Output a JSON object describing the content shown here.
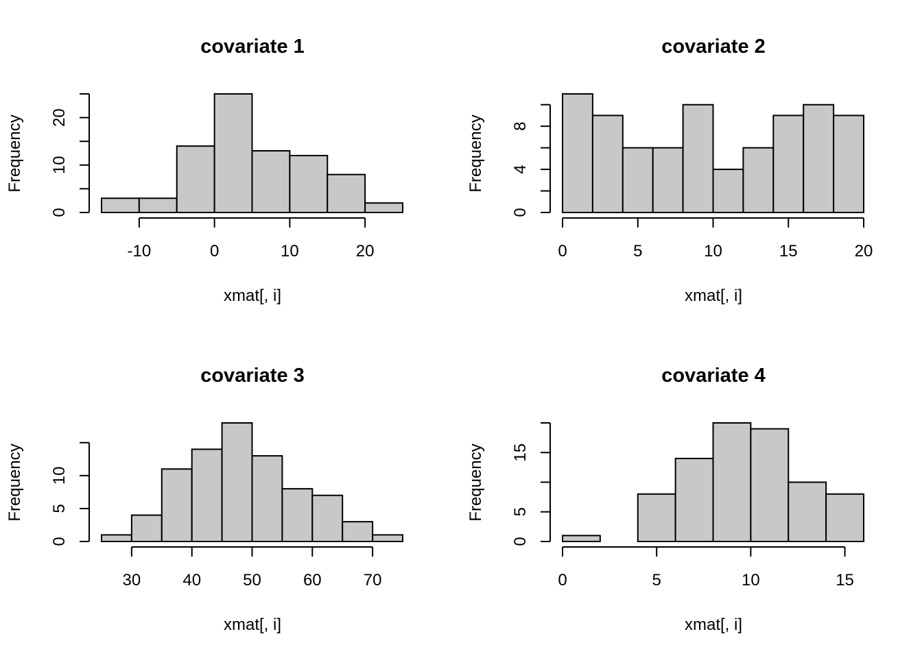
{
  "chart_data": [
    {
      "type": "bar",
      "title": "covariate  1",
      "xlabel": "xmat[, i]",
      "ylabel": "Frequency",
      "breaks": [
        -15,
        -10,
        -5,
        0,
        5,
        10,
        15,
        20,
        25
      ],
      "values": [
        3,
        3,
        14,
        25,
        13,
        12,
        8,
        2
      ],
      "x_ticks": [
        -10,
        0,
        10,
        20
      ],
      "y_ticks": [
        0,
        10,
        20
      ],
      "y_minor_ticks": [
        0,
        5,
        10,
        15,
        20,
        25
      ]
    },
    {
      "type": "bar",
      "title": "covariate  2",
      "xlabel": "xmat[, i]",
      "ylabel": "Frequency",
      "breaks": [
        0,
        2,
        4,
        6,
        8,
        10,
        12,
        14,
        16,
        18,
        20
      ],
      "values": [
        11,
        9,
        6,
        6,
        10,
        4,
        6,
        9,
        10,
        9
      ],
      "x_ticks": [
        0,
        5,
        10,
        15,
        20
      ],
      "y_ticks": [
        0,
        4,
        8
      ],
      "y_minor_ticks": [
        0,
        2,
        4,
        6,
        8,
        10
      ]
    },
    {
      "type": "bar",
      "title": "covariate  3",
      "xlabel": "xmat[, i]",
      "ylabel": "Frequency",
      "breaks": [
        25,
        30,
        35,
        40,
        45,
        50,
        55,
        60,
        65,
        70,
        75
      ],
      "values": [
        1,
        4,
        11,
        14,
        18,
        13,
        8,
        7,
        3,
        1
      ],
      "x_ticks": [
        30,
        40,
        50,
        60,
        70
      ],
      "y_ticks": [
        0,
        5,
        10
      ],
      "y_minor_ticks": [
        0,
        5,
        10,
        15
      ]
    },
    {
      "type": "bar",
      "title": "covariate  4",
      "xlabel": "xmat[, i]",
      "ylabel": "Frequency",
      "breaks": [
        0,
        2,
        4,
        6,
        8,
        10,
        12,
        14,
        16
      ],
      "values": [
        1,
        0,
        8,
        14,
        20,
        19,
        10,
        8
      ],
      "x_ticks": [
        0,
        5,
        10,
        15
      ],
      "y_ticks": [
        0,
        5,
        15
      ],
      "y_minor_ticks": [
        0,
        5,
        10,
        15,
        20
      ]
    }
  ]
}
